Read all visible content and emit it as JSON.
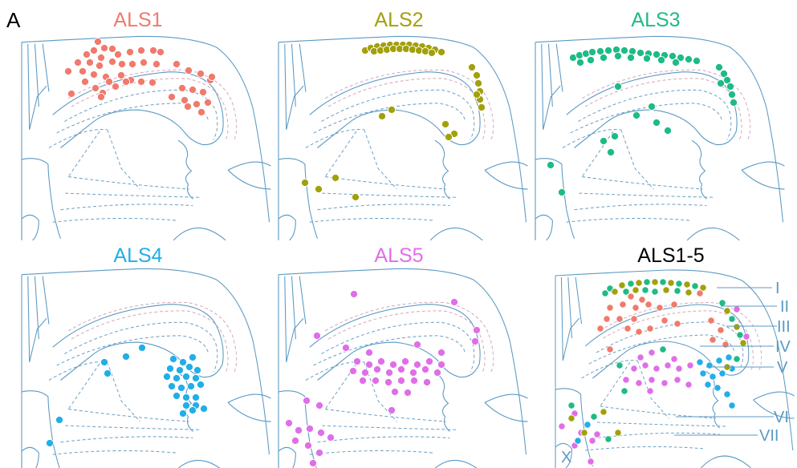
{
  "figure": {
    "panel_letter": "A",
    "colors": {
      "ALS1": "#f07a6c",
      "ALS2": "#a2a00b",
      "ALS3": "#1dbb85",
      "ALS4": "#22aee6",
      "ALS5": "#e06ee8",
      "ALS1-5": "#000000",
      "outline": "#5b9ac4"
    },
    "panels": [
      {
        "id": "als1",
        "title": "ALS1",
        "color_key": "ALS1"
      },
      {
        "id": "als2",
        "title": "ALS2",
        "color_key": "ALS2"
      },
      {
        "id": "als3",
        "title": "ALS3",
        "color_key": "ALS3"
      },
      {
        "id": "als4",
        "title": "ALS4",
        "color_key": "ALS4"
      },
      {
        "id": "als5",
        "title": "ALS5",
        "color_key": "ALS5"
      },
      {
        "id": "combined",
        "title": "ALS1-5",
        "color_key": "ALS1-5"
      }
    ],
    "lamina_labels": [
      "I",
      "II",
      "III",
      "IV",
      "V",
      "VI",
      "VII",
      "X"
    ]
  }
}
